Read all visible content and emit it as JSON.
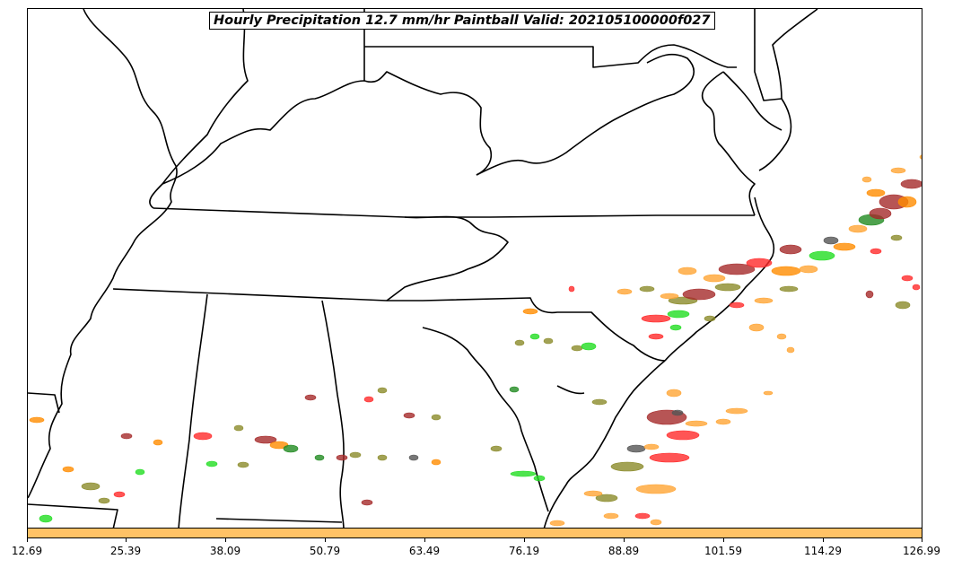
{
  "title": "Hourly Precipitation 12.7 mm/hr Paintball Valid: 202105100000f027",
  "colorbar": {
    "color": "#ffc266",
    "ticks": [
      "12.69",
      "25.39",
      "38.09",
      "50.79",
      "63.49",
      "76.19",
      "88.89",
      "101.59",
      "114.29",
      "126.99"
    ]
  },
  "paintball_colors": [
    "#ff2a2a",
    "#a52a2a",
    "#ffa534",
    "#ff8c00",
    "#22dd22",
    "#8b8b2a",
    "#555555",
    "#228b22"
  ],
  "map": {
    "region": "southeastern-united-states",
    "boundaries": "state-outlines"
  }
}
